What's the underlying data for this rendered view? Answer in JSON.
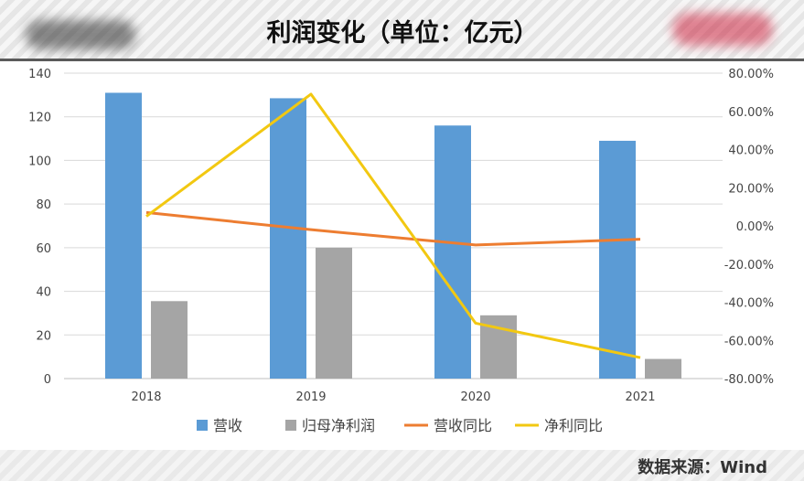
{
  "header": {
    "title": "利润变化（单位：亿元）"
  },
  "footer": {
    "source": "数据来源：Wind"
  },
  "colors": {
    "revenue": "#5b9bd5",
    "net_profit": "#a5a5a5",
    "revenue_yoy": "#ed7d31",
    "net_profit_yoy": "#f2c811"
  },
  "chart_data": {
    "type": "bar",
    "categories": [
      "2018",
      "2019",
      "2020",
      "2021"
    ],
    "y_left": {
      "lim": [
        0,
        140
      ],
      "ticks": [
        "0",
        "20",
        "40",
        "60",
        "80",
        "100",
        "120",
        "140"
      ]
    },
    "y_right": {
      "lim": [
        -80,
        80
      ],
      "ticks": [
        "-80.00%",
        "-60.00%",
        "-40.00%",
        "-20.00%",
        "0.00%",
        "20.00%",
        "40.00%",
        "60.00%",
        "80.00%"
      ]
    },
    "series": [
      {
        "name": "营收",
        "type": "bar",
        "axis": "left",
        "values": [
          131,
          128.5,
          116,
          109
        ]
      },
      {
        "name": "归母净利润",
        "type": "bar",
        "axis": "left",
        "values": [
          35.5,
          60,
          29,
          9
        ]
      },
      {
        "name": "营收同比",
        "type": "line",
        "axis": "right",
        "values": [
          7,
          -2,
          -10,
          -7
        ]
      },
      {
        "name": "净利同比",
        "type": "line",
        "axis": "right",
        "values": [
          5,
          69,
          -51,
          -69
        ]
      }
    ],
    "grid": true,
    "legend_position": "bottom"
  }
}
